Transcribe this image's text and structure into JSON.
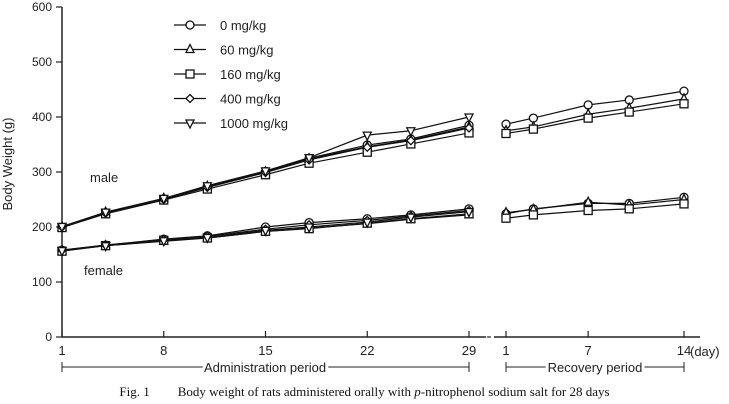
{
  "chart_data": {
    "type": "line",
    "title": "",
    "xlabel": "(day)",
    "ylabel": "Body Weight (g)",
    "ylim": [
      0,
      600
    ],
    "yticks": [
      0,
      100,
      200,
      300,
      400,
      500,
      600
    ],
    "grid": false,
    "legend_position": "top-left",
    "panels": [
      {
        "name": "Administration period",
        "xlim": [
          1,
          29
        ],
        "xticks": [
          1,
          8,
          15,
          22,
          29
        ],
        "x": [
          1,
          4,
          8,
          11,
          15,
          18,
          22,
          25,
          29
        ]
      },
      {
        "name": "Recovery period",
        "xlim": [
          1,
          14
        ],
        "xticks": [
          1,
          7,
          14
        ],
        "x": [
          1,
          3,
          7,
          10,
          14
        ]
      }
    ],
    "series": [
      {
        "name": "0 mg/kg",
        "marker": "circle",
        "sex": "male",
        "admin": [
          199,
          226,
          251,
          273,
          301,
          325,
          349,
          360,
          385
        ],
        "recovery": [
          387,
          398,
          422,
          431,
          447
        ]
      },
      {
        "name": "60 mg/kg",
        "marker": "triangle-up",
        "sex": "male",
        "admin": [
          200,
          227,
          252,
          274,
          300,
          324,
          346,
          358,
          382
        ],
        "recovery": [
          375,
          382,
          405,
          416,
          433
        ]
      },
      {
        "name": "160 mg/kg",
        "marker": "square",
        "sex": "male",
        "admin": [
          199,
          224,
          249,
          269,
          295,
          316,
          336,
          351,
          371
        ],
        "recovery": [
          370,
          378,
          398,
          409,
          424
        ]
      },
      {
        "name": "400 mg/kg",
        "marker": "diamond",
        "sex": "male",
        "admin": [
          200,
          225,
          250,
          272,
          299,
          322,
          345,
          357,
          380
        ],
        "recovery": null
      },
      {
        "name": "1000 mg/kg",
        "marker": "triangle-down",
        "sex": "male",
        "admin": [
          201,
          227,
          252,
          275,
          302,
          326,
          367,
          375,
          400
        ],
        "recovery": null
      },
      {
        "name": "0 mg/kg",
        "marker": "circle",
        "sex": "female",
        "admin": [
          158,
          167,
          178,
          184,
          200,
          208,
          215,
          222,
          233
        ],
        "recovery": [
          224,
          233,
          243,
          243,
          254
        ]
      },
      {
        "name": "60 mg/kg",
        "marker": "triangle-up",
        "sex": "female",
        "admin": [
          157,
          166,
          174,
          180,
          192,
          198,
          206,
          214,
          222
        ],
        "recovery": [
          226,
          232,
          245,
          240,
          250
        ]
      },
      {
        "name": "160 mg/kg",
        "marker": "square",
        "sex": "female",
        "admin": [
          156,
          166,
          176,
          180,
          192,
          197,
          207,
          215,
          224
        ],
        "recovery": [
          216,
          222,
          230,
          233,
          242
        ]
      },
      {
        "name": "400 mg/kg",
        "marker": "diamond",
        "sex": "female",
        "admin": [
          158,
          167,
          177,
          183,
          196,
          204,
          212,
          220,
          230
        ],
        "recovery": null
      },
      {
        "name": "1000 mg/kg",
        "marker": "triangle-down",
        "sex": "female",
        "admin": [
          157,
          166,
          175,
          181,
          194,
          200,
          209,
          218,
          228
        ],
        "recovery": null
      }
    ],
    "legend": [
      "0 mg/kg",
      "60 mg/kg",
      "160 mg/kg",
      "400 mg/kg",
      "1000 mg/kg"
    ],
    "annotations": {
      "male": "male",
      "female": "female",
      "admin_period": "Administration period",
      "recovery_period": "Recovery period",
      "day_unit": "(day)"
    }
  },
  "caption": {
    "fig": "Fig. 1",
    "text_before": "Body weight of rats administered orally with ",
    "italic": "p",
    "text_after": "-nitrophenol sodium salt for 28 days"
  }
}
